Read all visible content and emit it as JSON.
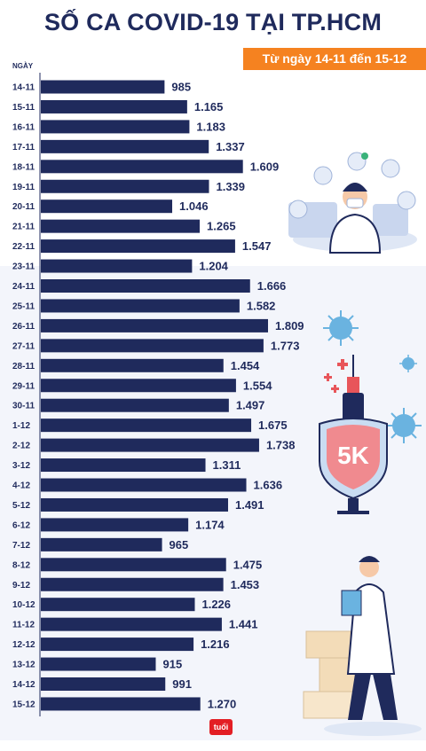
{
  "header": {
    "title": "SỐ CA COVID-19 TẠI TP.HCM",
    "subtitle": "Từ ngày 14-11 đến 15-12",
    "axis_label": "NGÀY"
  },
  "colors": {
    "bar": "#1f2a5c",
    "accent": "#f58220",
    "text": "#1f2a5c",
    "logo": "#e31e24"
  },
  "decorations": {
    "illustrations": [
      "doctor-with-icons",
      "virus-icon",
      "vaccine-syringe",
      "5k-shield",
      "doctor-clipboard",
      "medicine-boxes"
    ],
    "logo": "tuoitre-logo"
  },
  "chart_data": {
    "type": "bar",
    "orientation": "horizontal",
    "categories": [
      "14-11",
      "15-11",
      "16-11",
      "17-11",
      "18-11",
      "19-11",
      "20-11",
      "21-11",
      "22-11",
      "23-11",
      "24-11",
      "25-11",
      "26-11",
      "27-11",
      "28-11",
      "29-11",
      "30-11",
      "1-12",
      "2-12",
      "3-12",
      "4-12",
      "5-12",
      "6-12",
      "7-12",
      "8-12",
      "9-12",
      "10-12",
      "11-12",
      "12-12",
      "13-12",
      "14-12",
      "15-12"
    ],
    "values": [
      985,
      1165,
      1183,
      1337,
      1609,
      1339,
      1046,
      1265,
      1547,
      1204,
      1666,
      1582,
      1809,
      1773,
      1454,
      1554,
      1497,
      1675,
      1738,
      1311,
      1636,
      1491,
      1174,
      965,
      1475,
      1453,
      1226,
      1441,
      1216,
      915,
      991,
      1270
    ],
    "labels": [
      "985",
      "1.165",
      "1.183",
      "1.337",
      "1.609",
      "1.339",
      "1.046",
      "1.265",
      "1.547",
      "1.204",
      "1.666",
      "1.582",
      "1.809",
      "1.773",
      "1.454",
      "1.554",
      "1.497",
      "1.675",
      "1.738",
      "1.311",
      "1.636",
      "1.491",
      "1.174",
      "965",
      "1.475",
      "1.453",
      "1.226",
      "1.441",
      "1.216",
      "915",
      "991",
      "1.270"
    ],
    "ylabel": "NGÀY",
    "xlim": [
      0,
      1809
    ],
    "grid": false,
    "legend": "none"
  }
}
